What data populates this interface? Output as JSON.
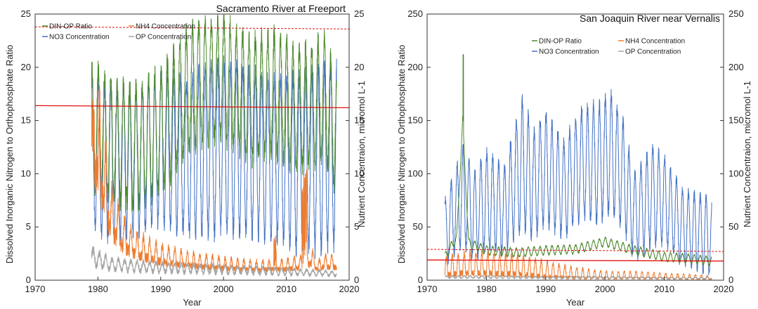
{
  "chart_data": [
    {
      "type": "line",
      "title": "Sacramento River at Freeport",
      "xlabel": "Year",
      "ylabel": "Dissolved Inorganic Nitrogen to Orthophosphate Ratio",
      "y2label": "Nutrient  Concentraion, micromol L-1",
      "xlim": [
        1970,
        2020
      ],
      "ylim": [
        0,
        25
      ],
      "y2lim": [
        0,
        25
      ],
      "xticks": [
        "1970",
        "1980",
        "1990",
        "2000",
        "2010",
        "2020"
      ],
      "yticks": [
        "0",
        "5",
        "10",
        "15",
        "20",
        "25"
      ],
      "y2ticks": [
        "0",
        "5",
        "10",
        "15",
        "20",
        "25"
      ],
      "legend": "top-left",
      "colors": {
        "din_op": "#4d8a2e",
        "no3": "#4472c4",
        "nh4": "#ed7d31",
        "op": "#a6a6a6",
        "ref": "#e01010"
      },
      "reference_lines": [
        {
          "style": "solid",
          "y1970": 16.4,
          "y2020": 16.2
        },
        {
          "style": "dashed",
          "y1970": 23.8,
          "y2020": 23.6
        }
      ],
      "series": [
        {
          "key": "din_op",
          "name": "DIN-OP Ratio",
          "x": [
            1979,
            1982,
            1986,
            1990,
            1994,
            1996,
            2000,
            2004,
            2008,
            2012,
            2016,
            2018
          ],
          "y": [
            14.5,
            13.5,
            12.5,
            14,
            17.5,
            18.5,
            19,
            17,
            17.5,
            16,
            17,
            14
          ]
        },
        {
          "key": "no3",
          "name": "NO3 Concentration",
          "x": [
            1979,
            1982,
            1986,
            1990,
            1994,
            1996,
            2000,
            2004,
            2008,
            2012,
            2016,
            2018
          ],
          "y": [
            12,
            11,
            11,
            12.5,
            11.5,
            12,
            12.5,
            12,
            11.5,
            11,
            11.5,
            12
          ],
          "amp": [
            7,
            7,
            6.5,
            7,
            7,
            7.5,
            8,
            7.5,
            7.5,
            8,
            8.5,
            8.5
          ]
        },
        {
          "key": "nh4",
          "name": "NH4 Concentration",
          "x": [
            1979,
            1980,
            1981,
            1982,
            1984,
            1986,
            1990,
            1995,
            2000,
            2005,
            2008,
            2010,
            2013,
            2014,
            2015,
            2016,
            2018
          ],
          "y": [
            14,
            12,
            9,
            6,
            4,
            3,
            2.2,
            1.7,
            1.4,
            1.2,
            1.3,
            1.3,
            1.6,
            2,
            1.2,
            1.6,
            1.5
          ]
        },
        {
          "key": "op",
          "name": "OP Concentration",
          "x": [
            1979,
            1982,
            1986,
            1990,
            1995,
            2000,
            2005,
            2010,
            2015,
            2018
          ],
          "y": [
            2.2,
            1.5,
            1.3,
            1.2,
            1.1,
            1.0,
            0.9,
            0.8,
            0.7,
            0.6
          ]
        }
      ]
    },
    {
      "type": "line",
      "title": "San Joaquin River near Vernalis",
      "xlabel": "Year",
      "ylabel": "Dissolved Inorganic Nitrogen to Orthophosphate Ratio",
      "y2label": "Nutrient  Concentraion, micromol L-1",
      "xlim": [
        1970,
        2020
      ],
      "ylim": [
        0,
        250
      ],
      "y2lim": [
        0,
        250
      ],
      "xticks": [
        "1970",
        "1980",
        "1990",
        "2000",
        "2010",
        "2020"
      ],
      "yticks": [
        "0",
        "50",
        "100",
        "150",
        "200",
        "250"
      ],
      "y2ticks": [
        "0",
        "50",
        "100",
        "150",
        "200",
        "250"
      ],
      "legend": "top-left",
      "colors": {
        "din_op": "#4d8a2e",
        "no3": "#4472c4",
        "nh4": "#ed7d31",
        "op": "#a6a6a6",
        "ref": "#e01010"
      },
      "reference_lines": [
        {
          "style": "solid",
          "y1970": 19,
          "y2020": 18
        },
        {
          "style": "dashed",
          "y1970": 29,
          "y2020": 27
        }
      ],
      "series": [
        {
          "key": "din_op",
          "name": "DIN-OP Ratio",
          "x": [
            1973,
            1975,
            1976,
            1977,
            1980,
            1985,
            1990,
            1995,
            2000,
            2005,
            2010,
            2015,
            2018
          ],
          "y": [
            22,
            40,
            150,
            35,
            28,
            26,
            28,
            29,
            36,
            28,
            22,
            20,
            18
          ],
          "peak": {
            "x": 1976.1,
            "y": 212
          }
        },
        {
          "key": "no3",
          "name": "NO3 Concentration",
          "x": [
            1973,
            1976,
            1978,
            1980,
            1983,
            1986,
            1988,
            1990,
            1993,
            1996,
            1999,
            2001,
            2003,
            2005,
            2008,
            2010,
            2013,
            2016,
            2018
          ],
          "y": [
            45,
            80,
            60,
            75,
            65,
            110,
            90,
            105,
            85,
            110,
            110,
            120,
            100,
            60,
            80,
            75,
            50,
            45,
            40
          ],
          "amp": [
            30,
            45,
            40,
            45,
            40,
            60,
            50,
            50,
            45,
            50,
            55,
            55,
            50,
            40,
            45,
            40,
            35,
            35,
            35
          ]
        },
        {
          "key": "nh4",
          "name": "NH4 Concentration",
          "x": [
            1973,
            1976,
            1980,
            1985,
            1990,
            1995,
            2000,
            2005,
            2010,
            2015,
            2018
          ],
          "y": [
            8,
            10,
            10,
            9,
            6,
            4,
            3,
            3,
            2.5,
            2,
            1.5
          ],
          "amp": [
            10,
            12,
            12,
            11,
            9,
            6,
            4,
            4,
            3,
            2.5,
            2
          ]
        },
        {
          "key": "op",
          "name": "OP Concentration",
          "x": [
            1973,
            1980,
            1990,
            2000,
            2010,
            2018
          ],
          "y": [
            3,
            3,
            2.5,
            2.5,
            2,
            2
          ]
        }
      ]
    }
  ]
}
